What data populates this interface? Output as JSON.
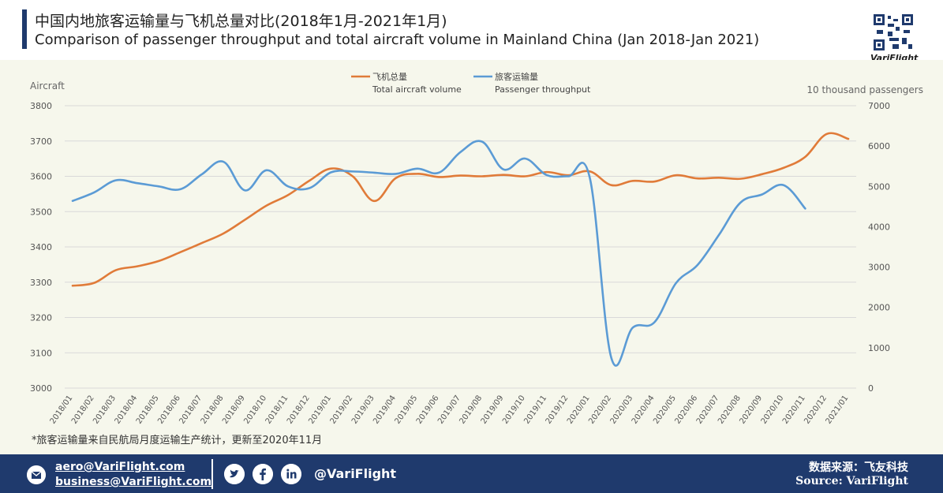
{
  "header": {
    "title_cn": "中国内地旅客运输量与飞机总量对比(2018年1月-2021年1月)",
    "title_en": "Comparison of passenger throughput and total aircraft volume in Mainland China (Jan 2018-Jan 2021)",
    "brand": "VariFlight"
  },
  "chart_data": {
    "type": "line",
    "left_axis_label": "Aircraft",
    "right_axis_label": "10 thousand passengers",
    "left_ylim": [
      3000,
      3800
    ],
    "left_ticks": [
      3000,
      3100,
      3200,
      3300,
      3400,
      3500,
      3600,
      3700,
      3800
    ],
    "right_ylim": [
      0,
      7000
    ],
    "right_ticks": [
      0,
      1000,
      2000,
      3000,
      4000,
      5000,
      6000,
      7000
    ],
    "legend_position": "top-center",
    "grid": true,
    "categories": [
      "2018/01",
      "2018/02",
      "2018/03",
      "2018/04",
      "2018/05",
      "2018/06",
      "2018/07",
      "2018/08",
      "2018/09",
      "2018/10",
      "2018/11",
      "2018/12",
      "2019/01",
      "2019/02",
      "2019/03",
      "2019/04",
      "2019/05",
      "2019/06",
      "2019/07",
      "2019/08",
      "2019/09",
      "2019/10",
      "2019/11",
      "2019/12",
      "2020/01",
      "2020/02",
      "2020/03",
      "2020/04",
      "2020/05",
      "2020/06",
      "2020/07",
      "2020/08",
      "2020/09",
      "2020/10",
      "2020/11",
      "2020/12",
      "2021/01"
    ],
    "series": [
      {
        "name_cn": "飞机总量",
        "name_en": "Total aircraft volume",
        "color": "#e07b39",
        "axis": "left",
        "values": [
          3290,
          3298,
          3334,
          3345,
          3360,
          3385,
          3411,
          3438,
          3477,
          3517,
          3547,
          3588,
          3622,
          3600,
          3530,
          3595,
          3607,
          3598,
          3602,
          3600,
          3604,
          3600,
          3612,
          3603,
          3614,
          3575,
          3587,
          3585,
          3603,
          3594,
          3596,
          3593,
          3606,
          3624,
          3655,
          3720,
          3706
        ]
      },
      {
        "name_cn": "旅客运输量",
        "name_en": "Passenger throughput",
        "color": "#5b9bd5",
        "axis": "right",
        "values": [
          4640,
          4850,
          5150,
          5080,
          5000,
          4930,
          5300,
          5610,
          4900,
          5400,
          5000,
          4960,
          5350,
          5370,
          5340,
          5310,
          5440,
          5340,
          5850,
          6110,
          5420,
          5690,
          5280,
          5250,
          5220,
          750,
          1500,
          1630,
          2600,
          3050,
          3800,
          4600,
          4800,
          5030,
          4450,
          null,
          null
        ]
      }
    ]
  },
  "footnote": "*旅客运输量来自民航局月度运输生产统计，更新至2020年11月",
  "footer": {
    "email1": "aero@VariFlight.com",
    "email2": "business@VariFlight.com",
    "handle": "@VariFlight",
    "source_cn": "数据来源：飞友科技",
    "source_en": "Source: VariFlight",
    "icons": [
      "mail-icon",
      "twitter-icon",
      "facebook-icon",
      "linkedin-icon"
    ]
  }
}
